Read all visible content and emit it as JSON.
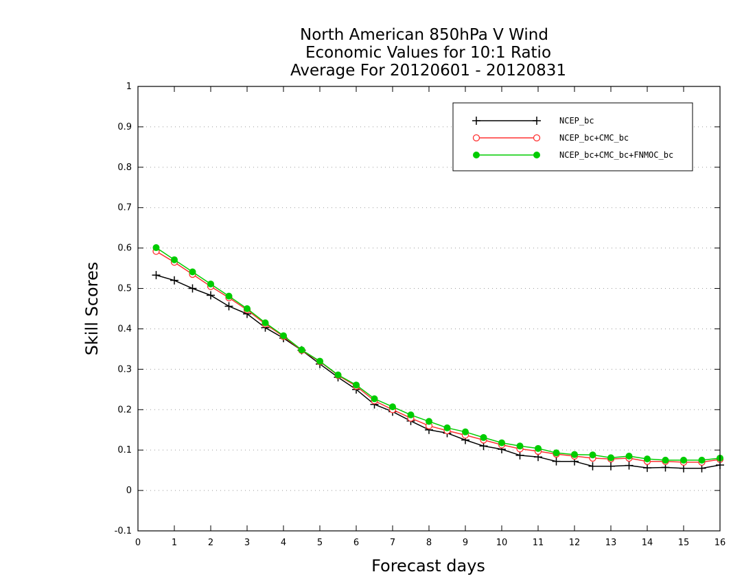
{
  "chart_data": {
    "type": "line",
    "title_lines": [
      "North American 850hPa V Wind",
      "Economic Values for 10:1 Ratio",
      "Average For 20120601 - 20120831"
    ],
    "xlabel": "Forecast days",
    "ylabel": "Skill Scores",
    "xlim": [
      0,
      16
    ],
    "ylim": [
      -0.1,
      1
    ],
    "xticks": [
      0,
      1,
      2,
      3,
      4,
      5,
      6,
      7,
      8,
      9,
      10,
      11,
      12,
      13,
      14,
      15,
      16
    ],
    "xtick_labels": [
      "0",
      "1",
      "2",
      "3",
      "4",
      "5",
      "6",
      "7",
      "8",
      "9",
      "10",
      "11",
      "12",
      "13",
      "14",
      "15",
      "16"
    ],
    "yticks": [
      -0.1,
      0,
      0.1,
      0.2,
      0.3,
      0.4,
      0.5,
      0.6,
      0.7,
      0.8,
      0.9,
      1
    ],
    "ytick_labels": [
      "-0.1",
      "0",
      "0.1",
      "0.2",
      "0.3",
      "0.4",
      "0.5",
      "0.6",
      "0.7",
      "0.8",
      "0.9",
      "1"
    ],
    "grid": "horizontal-dotted",
    "legend_position": "top-right",
    "x": [
      0.5,
      1,
      1.5,
      2,
      2.5,
      3,
      3.5,
      4,
      4.5,
      5,
      5.5,
      6,
      6.5,
      7,
      7.5,
      8,
      8.5,
      9,
      9.5,
      10,
      10.5,
      11,
      11.5,
      12,
      12.5,
      13,
      13.5,
      14,
      14.5,
      15,
      15.5,
      16
    ],
    "series": [
      {
        "name": "NCEP_bc",
        "color": "#000000",
        "marker": "plus",
        "values": [
          0.533,
          0.52,
          0.5,
          0.483,
          0.456,
          0.437,
          0.403,
          0.377,
          0.347,
          0.313,
          0.28,
          0.25,
          0.213,
          0.195,
          0.172,
          0.15,
          0.142,
          0.125,
          0.11,
          0.102,
          0.087,
          0.083,
          0.072,
          0.072,
          0.06,
          0.06,
          0.062,
          0.056,
          0.057,
          0.055,
          0.055,
          0.063
        ]
      },
      {
        "name": "NCEP_bc+CMC_bc",
        "color": "#ff3030",
        "marker": "open-circle",
        "values": [
          0.592,
          0.565,
          0.535,
          0.505,
          0.477,
          0.447,
          0.412,
          0.381,
          0.347,
          0.319,
          0.285,
          0.258,
          0.222,
          0.2,
          0.179,
          0.16,
          0.148,
          0.137,
          0.125,
          0.113,
          0.103,
          0.097,
          0.09,
          0.085,
          0.08,
          0.078,
          0.08,
          0.072,
          0.072,
          0.07,
          0.07,
          0.077
        ]
      },
      {
        "name": "NCEP_bc+CMC_bc+FNMOC_bc",
        "color": "#00cc00",
        "marker": "filled-circle",
        "values": [
          0.601,
          0.571,
          0.541,
          0.511,
          0.481,
          0.45,
          0.415,
          0.383,
          0.348,
          0.32,
          0.286,
          0.261,
          0.227,
          0.207,
          0.187,
          0.171,
          0.155,
          0.145,
          0.131,
          0.118,
          0.11,
          0.104,
          0.093,
          0.089,
          0.088,
          0.081,
          0.085,
          0.078,
          0.075,
          0.075,
          0.075,
          0.08
        ]
      }
    ]
  }
}
